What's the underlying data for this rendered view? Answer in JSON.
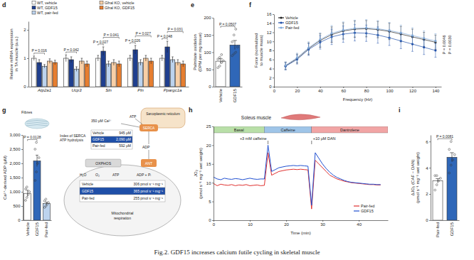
{
  "caption": "Fig.2. GDF15 increases calcium futile cycling in skeletal muscle",
  "chart_data": [
    {
      "panel": "d",
      "type": "bar",
      "ylabel": [
        "Relative mRNA expression",
        "in TA muscle (a.u.)"
      ],
      "categories": [
        "Atp2a1",
        "Ucp3",
        "Sln",
        "Pln",
        "Ppargc1a"
      ],
      "series": [
        {
          "name": "WT, vehicle",
          "color": "#ffffff",
          "values": [
            1.0,
            1.0,
            1.0,
            1.0,
            1.0
          ],
          "errors": [
            0.08,
            0.12,
            0.1,
            0.1,
            0.1
          ]
        },
        {
          "name": "WT, GDF15",
          "color": "#1f3f8f",
          "values": [
            0.85,
            0.95,
            1.25,
            1.3,
            1.4
          ],
          "errors": [
            0.1,
            0.1,
            0.15,
            0.15,
            0.2
          ]
        },
        {
          "name": "WT, pair-fed",
          "color": "#bcd3ee",
          "values": [
            0.72,
            0.62,
            0.8,
            0.85,
            0.95
          ],
          "errors": [
            0.06,
            0.08,
            0.1,
            0.1,
            0.1
          ]
        },
        {
          "name": "Gfral KO, vehicle",
          "color": "#f8cfa6",
          "values": [
            0.9,
            0.9,
            0.85,
            1.0,
            0.85
          ],
          "errors": [
            0.08,
            0.1,
            0.1,
            0.1,
            0.1
          ]
        },
        {
          "name": "Gfral KO, GDF15",
          "color": "#e67e30",
          "values": [
            0.85,
            0.8,
            0.8,
            0.9,
            0.8
          ],
          "errors": [
            0.08,
            0.1,
            0.1,
            0.1,
            0.1
          ]
        }
      ],
      "comparisons": [
        {
          "category": "Atp2a1",
          "groups": [
            "WT, vehicle",
            "WT, pair-fed"
          ],
          "label": "P = 0.016"
        },
        {
          "category": "Ucp3",
          "groups": [
            "WT, vehicle",
            "WT, pair-fed"
          ],
          "label": "P = 0.042"
        },
        {
          "category": "Sln",
          "groups": [
            "WT, vehicle",
            "WT, GDF15"
          ],
          "label": "P = 0.027"
        },
        {
          "category": "Sln",
          "groups": [
            "WT, GDF15",
            "Gfral KO, GDF15"
          ],
          "label": "P = 0.041"
        },
        {
          "category": "Pln",
          "groups": [
            "WT, vehicle",
            "WT, GDF15"
          ],
          "label": "P = 0.026"
        },
        {
          "category": "Pln",
          "groups": [
            "WT, GDF15",
            "Gfral KO, GDF15"
          ],
          "label": "P = 0.027"
        },
        {
          "category": "Ppargc1a",
          "groups": [
            "WT, vehicle",
            "WT, GDF15"
          ],
          "label": "P = 0.048"
        },
        {
          "category": "Ppargc1a",
          "groups": [
            "WT, GDF15",
            "Gfral KO, GDF15"
          ],
          "label": "P = 0.031"
        }
      ],
      "ylim": [
        0,
        2.3
      ],
      "yticks": [
        0,
        1,
        2
      ],
      "legend": "top"
    },
    {
      "panel": "e",
      "type": "bar",
      "ylabel": [
        "Palmitate oxidation",
        "(DPM per mg tissue)"
      ],
      "categories": [
        "Vehicle",
        "GDF15"
      ],
      "values": [
        74,
        121
      ],
      "errors": [
        7,
        13
      ],
      "colors": [
        "#ffffff",
        "#2f67b8"
      ],
      "points": [
        [
          55,
          60,
          70,
          75,
          80,
          85,
          93
        ],
        [
          90,
          95,
          100,
          115,
          130,
          150,
          167
        ]
      ],
      "comparisons": [
        {
          "groups": [
            "Vehicle",
            "GDF15"
          ],
          "label": "P = 0.0507"
        }
      ],
      "ylim": [
        0,
        200
      ],
      "yticks": [
        0,
        50,
        100,
        150,
        200
      ]
    },
    {
      "panel": "f",
      "type": "line",
      "xlabel": "Frequency (Hz)",
      "ylabel": [
        "Force (normalized",
        "to muscle mass)"
      ],
      "x": [
        10,
        20,
        30,
        40,
        50,
        60,
        70,
        80,
        90,
        100,
        110,
        120,
        130,
        140
      ],
      "series": [
        {
          "name": "Vehicle",
          "color": "#222222",
          "marker": "circle",
          "values": [
            4.6,
            6.2,
            8.4,
            10.2,
            11.5,
            12.3,
            12.7,
            12.8,
            12.6,
            12.2,
            11.6,
            11.0,
            10.4,
            9.8
          ],
          "errors": [
            0.8,
            1.0,
            1.3,
            1.5,
            1.7,
            1.8,
            1.8,
            1.8,
            1.8,
            1.8,
            1.7,
            1.7,
            1.6,
            1.6
          ]
        },
        {
          "name": "GDF15",
          "color": "#1f4fa8",
          "marker": "circle",
          "values": [
            4.5,
            6.0,
            8.2,
            9.8,
            11.0,
            11.6,
            11.9,
            11.8,
            11.4,
            10.8,
            10.1,
            9.4,
            8.7,
            8.0
          ],
          "errors": [
            0.8,
            1.0,
            1.3,
            1.5,
            1.7,
            1.8,
            1.8,
            1.8,
            1.8,
            1.7,
            1.7,
            1.6,
            1.6,
            1.5
          ]
        },
        {
          "name": "Pair-fed",
          "color": "#7fa8d8",
          "marker": "circle",
          "values": [
            4.7,
            6.4,
            8.6,
            10.4,
            11.8,
            12.5,
            12.9,
            13.0,
            12.8,
            12.4,
            11.9,
            11.3,
            10.7,
            10.1
          ],
          "errors": [
            0.8,
            1.0,
            1.3,
            1.5,
            1.7,
            1.8,
            1.8,
            1.8,
            1.8,
            1.8,
            1.7,
            1.7,
            1.6,
            1.6
          ]
        }
      ],
      "annotations": [
        {
          "text": "P = 0.0046"
        },
        {
          "text": "P = 0.0030"
        }
      ],
      "xlim": [
        0,
        145
      ],
      "xticks": [
        0,
        20,
        40,
        60,
        80,
        100,
        120,
        140
      ],
      "ylim": [
        0,
        16
      ],
      "yticks": [
        0,
        2,
        4,
        6,
        8,
        10,
        12,
        14,
        16
      ],
      "legend": "upper left"
    },
    {
      "panel": "g",
      "type": "bar",
      "ylabel": [
        "Ca²⁺-derived ADP (μM)"
      ],
      "categories": [
        "Vehicle",
        "GDF15",
        "Pair-fed"
      ],
      "values": [
        945,
        2090,
        592
      ],
      "errors": [
        110,
        200,
        45
      ],
      "colors": [
        "#ffffff",
        "#2f67b8",
        "#bcd3ee"
      ],
      "points": [
        [
          700,
          800,
          900,
          1000,
          1100,
          1170
        ],
        [
          1400,
          1700,
          2000,
          2200,
          2500,
          2740
        ],
        [
          450,
          500,
          560,
          620,
          680,
          742
        ]
      ],
      "comparisons": [
        {
          "groups": [
            "Vehicle",
            "GDF15"
          ],
          "label": "P = 0.0128"
        }
      ],
      "ylim": [
        0,
        3000
      ],
      "yticks": [
        0,
        500,
        {
          "value": 1000,
          "label": "1,000"
        },
        {
          "value": 1500,
          "label": "1,500"
        },
        {
          "value": 2000,
          "label": "2,000"
        },
        {
          "value": 2500,
          "label": "2,500"
        },
        {
          "value": 3000,
          "label": "3,000"
        }
      ]
    },
    {
      "panel": "h",
      "type": "line",
      "title": "Soleus muscle",
      "xlabel": "Time (min)",
      "ylabel": [
        "JO₂",
        "(pmol s⁻¹ mg⁻¹ wet weight)"
      ],
      "x": [
        0,
        1,
        2,
        3,
        4,
        5,
        6,
        7,
        8,
        9,
        10,
        11,
        12,
        13,
        14,
        15,
        16,
        17,
        18,
        19,
        20,
        21,
        22,
        23,
        24,
        25,
        26,
        27,
        28,
        29,
        30,
        31,
        32,
        33,
        34,
        35,
        36,
        37,
        38,
        39,
        40,
        41,
        42,
        43,
        44,
        45,
        46
      ],
      "series": [
        {
          "name": "Pair-fed",
          "color": "#e0302f",
          "values": [
            9.8,
            9.2,
            9.6,
            9.4,
            9.3,
            9.5,
            9.2,
            9.4,
            9.3,
            9.5,
            9.2,
            9.3,
            9.4,
            9.2,
            9.3,
            18.0,
            12.0,
            12.5,
            13.0,
            13.2,
            13.4,
            13.5,
            13.6,
            13.5,
            13.6,
            13.5,
            13.4,
            3.0,
            16.0,
            15.0,
            14.0,
            13.0,
            12.0,
            11.5,
            11.0,
            10.7,
            10.4,
            10.2,
            10.0,
            9.9,
            9.8,
            9.7,
            9.6,
            9.5,
            9.5,
            9.4,
            9.4
          ]
        },
        {
          "name": "GDF15",
          "color": "#1f4fd1",
          "values": [
            11.5,
            11.0,
            10.8,
            11.2,
            11.0,
            10.9,
            11.1,
            11.0,
            10.8,
            11.0,
            11.2,
            11.0,
            10.9,
            11.0,
            11.0,
            20.0,
            13.0,
            13.5,
            14.0,
            14.2,
            14.4,
            14.5,
            14.6,
            14.5,
            14.6,
            14.5,
            14.4,
            4.0,
            18.0,
            16.5,
            15.0,
            13.8,
            12.8,
            12.0,
            11.4,
            11.0,
            10.6,
            10.3,
            10.1,
            10.0,
            9.9,
            9.8,
            9.7,
            9.6,
            9.6,
            9.5,
            9.5
          ]
        }
      ],
      "phases": [
        {
          "label": "Basal",
          "start": 0,
          "end": 14,
          "color": "#b9dfa8"
        },
        {
          "label": "Caffeine",
          "start": 14,
          "end": 27,
          "color": "#9fc5e8"
        },
        {
          "label": "Dantrolene",
          "start": 27,
          "end": 48,
          "color": "#f1a5a5"
        }
      ],
      "annotations": [
        {
          "text": "+3 mM caffeine",
          "x": 15
        },
        {
          "text": "+10 μM DAN",
          "x": 27
        }
      ],
      "xlim": [
        0,
        48
      ],
      "xticks": [
        0,
        10,
        20,
        30,
        40
      ],
      "ylim": [
        0,
        25
      ],
      "yticks": [
        0,
        5,
        10,
        15,
        20,
        25
      ],
      "legend": "lower right"
    },
    {
      "panel": "i",
      "type": "bar",
      "ylabel": [
        "ΔJO₂ (CAF − DAN)",
        "(pmol s⁻¹ mg⁻¹ wet weight)"
      ],
      "categories": [
        "Pair-fed",
        "GDF15"
      ],
      "values": [
        3.0,
        4.8
      ],
      "errors": [
        0.17,
        0.35
      ],
      "colors": [
        "#ffffff",
        "#2f67b8"
      ],
      "points": [
        [
          2.3,
          2.7,
          3.0,
          3.2,
          3.4,
          3.4
        ],
        [
          3.6,
          4.2,
          4.6,
          5.0,
          5.4,
          6.0
        ]
      ],
      "comparisons": [
        {
          "groups": [
            "Pair-fed",
            "GDF15"
          ],
          "label": "P = 0.0081"
        }
      ],
      "ylim": [
        0,
        6.5
      ],
      "yticks": [
        0,
        2,
        4,
        6
      ]
    }
  ],
  "diagram": {
    "fibres_label": "Fibres",
    "calcium": "350 μM Ca²⁺",
    "atp_top": "ATP",
    "sr_label": "Sarcoplasmic reticulum",
    "serca": "SERCA",
    "serca_index_label": [
      "Index of SERCA",
      "ATP hydrolysis"
    ],
    "serca_index": [
      {
        "label": "Vehicle",
        "value": "945 μM"
      },
      {
        "label": "GDF15",
        "value": "2,090 μM"
      },
      {
        "label": "Pair-fed",
        "value": "592 μM"
      }
    ],
    "adp": "ADP",
    "oxphos": "OXPHOS",
    "ant": "ANT",
    "water": "H₂O",
    "oxygen": "O₂",
    "atp_mito": "ATP",
    "adp_pi": "ADP + Pᵢ",
    "respiration": [
      {
        "label": "Vehicle",
        "value": "306 pmol s⁻¹ mg⁻¹"
      },
      {
        "label": "GDF15",
        "value": "365 pmol s⁻¹ mg⁻¹"
      },
      {
        "label": "Pair-fed",
        "value": "255 pmol s⁻¹ mg⁻¹"
      }
    ],
    "respiration_label": [
      "Mitochondrial",
      "respiration"
    ]
  }
}
